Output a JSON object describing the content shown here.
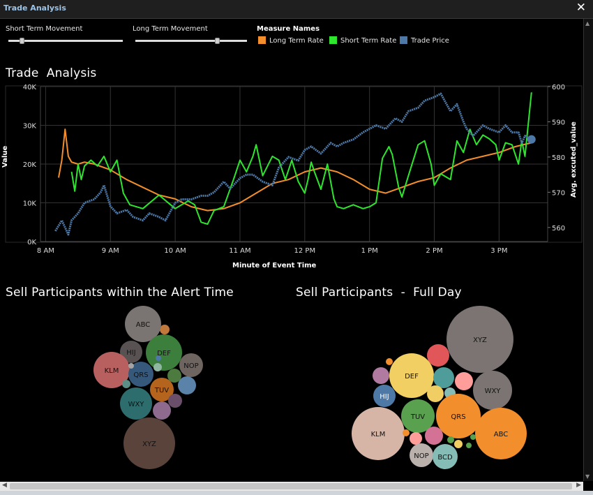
{
  "window": {
    "title": "Trade Analysis",
    "close_label": "✕"
  },
  "filters": {
    "short_term": {
      "label": "Short Term Movement"
    },
    "long_term": {
      "label": "Long Term Movement"
    }
  },
  "legend": {
    "title": "Measure Names",
    "items": [
      {
        "label": "Long Term Rate",
        "color": "#f28e2b"
      },
      {
        "label": "Short Term Rate",
        "color": "#2ee62e"
      },
      {
        "label": "Trade Price",
        "color": "#4e79a7"
      }
    ]
  },
  "main_chart_title": "Trade  Analysis",
  "bubble_titles": {
    "left": "Sell Participants within the Alert Time",
    "right": "Sell Participants  -  Full Day"
  },
  "chart_data": [
    {
      "type": "line",
      "title": "Trade  Analysis",
      "xlabel": "Minute of Event Time",
      "ylabel": "Value",
      "y2label": "Avg. excuted_value",
      "x_ticks": [
        "8 AM",
        "9 AM",
        "10 AM",
        "11 AM",
        "12 PM",
        "1 PM",
        "2 PM",
        "3 PM"
      ],
      "y_ticks": [
        "0K",
        "10K",
        "20K",
        "30K",
        "40K"
      ],
      "y2_ticks": [
        "560",
        "570",
        "580",
        "590",
        "600"
      ],
      "ylim": [
        0,
        40000
      ],
      "y2lim": [
        556,
        600
      ],
      "grid": true,
      "series": [
        {
          "name": "Long Term Rate",
          "axis": "left",
          "color": "#f28e2b",
          "x": [
            8.2,
            8.25,
            8.3,
            8.35,
            8.4,
            8.5,
            8.6,
            8.75,
            9.0,
            9.25,
            9.5,
            9.75,
            10.0,
            10.25,
            10.5,
            10.75,
            11.0,
            11.25,
            11.5,
            11.75,
            12.0,
            12.25,
            12.5,
            12.75,
            13.0,
            13.25,
            13.5,
            13.75,
            14.0,
            14.25,
            14.5,
            14.75,
            15.0,
            15.25,
            15.5
          ],
          "values": [
            16500,
            21000,
            29000,
            22000,
            20500,
            20000,
            20500,
            20000,
            18500,
            16000,
            14000,
            12000,
            11000,
            9000,
            8000,
            8500,
            10000,
            12500,
            15000,
            16000,
            18000,
            19000,
            18000,
            16000,
            13500,
            12500,
            14000,
            15500,
            16500,
            19000,
            21000,
            22000,
            23000,
            24500,
            25500
          ]
        },
        {
          "name": "Short Term Rate",
          "axis": "left",
          "color": "#2ee62e",
          "x": [
            8.4,
            8.45,
            8.5,
            8.55,
            8.6,
            8.7,
            8.8,
            8.9,
            9.0,
            9.1,
            9.2,
            9.3,
            9.5,
            9.75,
            10.0,
            10.1,
            10.2,
            10.3,
            10.4,
            10.5,
            10.6,
            10.75,
            10.9,
            11.0,
            11.1,
            11.2,
            11.25,
            11.35,
            11.5,
            11.6,
            11.7,
            11.8,
            11.9,
            12.0,
            12.05,
            12.1,
            12.15,
            12.25,
            12.35,
            12.45,
            12.5,
            12.6,
            12.75,
            12.9,
            13.0,
            13.1,
            13.2,
            13.3,
            13.35,
            13.45,
            13.5,
            13.6,
            13.75,
            13.85,
            13.95,
            14.0,
            14.1,
            14.25,
            14.35,
            14.45,
            14.55,
            14.65,
            14.75,
            14.85,
            14.95,
            15.0,
            15.1,
            15.2,
            15.3,
            15.35,
            15.4,
            15.5
          ],
          "values": [
            18000,
            13000,
            20000,
            16000,
            19500,
            21000,
            19500,
            22000,
            18000,
            21000,
            12500,
            9500,
            8500,
            12000,
            8500,
            9500,
            10500,
            9500,
            5000,
            4500,
            8000,
            9000,
            16000,
            21000,
            18000,
            22000,
            25000,
            17000,
            22000,
            21000,
            16000,
            21000,
            15500,
            12500,
            16000,
            20500,
            18000,
            13500,
            20000,
            11000,
            9000,
            8500,
            9500,
            8500,
            9000,
            10000,
            21500,
            24500,
            22500,
            14000,
            11500,
            17000,
            25000,
            26000,
            20000,
            14500,
            17500,
            16000,
            26000,
            23000,
            29000,
            25000,
            27500,
            26500,
            25000,
            21000,
            25500,
            25000,
            20000,
            26000,
            22000,
            38500
          ]
        },
        {
          "name": "Trade Price",
          "axis": "right",
          "color": "#4e79a7",
          "x": [
            8.15,
            8.25,
            8.35,
            8.4,
            8.5,
            8.6,
            8.75,
            8.85,
            8.9,
            9.0,
            9.1,
            9.25,
            9.35,
            9.5,
            9.6,
            9.75,
            9.85,
            10.0,
            10.1,
            10.25,
            10.4,
            10.5,
            10.6,
            10.75,
            10.85,
            11.0,
            11.1,
            11.2,
            11.35,
            11.5,
            11.6,
            11.75,
            11.9,
            12.0,
            12.1,
            12.25,
            12.4,
            12.5,
            12.6,
            12.75,
            12.9,
            13.0,
            13.1,
            13.25,
            13.4,
            13.5,
            13.6,
            13.75,
            13.85,
            14.0,
            14.1,
            14.25,
            14.35,
            14.45,
            14.5,
            14.6,
            14.75,
            14.85,
            15.0,
            15.1,
            15.2,
            15.3,
            15.35,
            15.4,
            15.5
          ],
          "values": [
            559,
            562,
            558,
            562,
            564,
            567,
            568,
            570,
            572,
            566,
            564,
            565,
            563,
            562,
            564,
            563,
            562,
            567,
            568,
            568,
            569,
            569,
            570,
            573,
            571,
            574,
            575,
            575,
            573,
            572,
            577,
            580,
            579,
            582,
            583,
            581,
            584,
            583,
            584,
            585,
            587,
            588,
            589,
            588,
            591,
            590,
            593,
            594,
            596,
            597,
            598,
            593,
            595,
            590,
            588,
            586,
            589,
            588,
            587,
            589,
            587,
            587,
            584,
            586,
            585
          ]
        }
      ]
    },
    {
      "type": "bubble",
      "title": "Sell Participants within the Alert Time",
      "labels": [
        "ABC",
        "HIJ",
        "DEF",
        "KLM",
        "QRS",
        "NOP",
        "TUV",
        "WXY",
        "XYZ"
      ],
      "bubbles": [
        {
          "label": "ABC",
          "color": "#7a7472"
        },
        {
          "label": "HIJ",
          "color": "#595252"
        },
        {
          "label": "DEF",
          "color": "#3c7e3c"
        },
        {
          "label": "KLM",
          "color": "#b86060"
        },
        {
          "label": "QRS",
          "color": "#36587a"
        },
        {
          "label": "NOP",
          "color": "#6e6460"
        },
        {
          "label": "TUV",
          "color": "#b5641e"
        },
        {
          "label": "WXY",
          "color": "#2d6d6e"
        },
        {
          "label": "XYZ",
          "color": "#5a433b"
        }
      ]
    },
    {
      "type": "bubble",
      "title": "Sell Participants  -  Full Day",
      "labels": [
        "XYZ",
        "DEF",
        "WXY",
        "HIJ",
        "QRS",
        "KLM",
        "TUV",
        "ABC",
        "NOP",
        "BCD"
      ],
      "bubbles": [
        {
          "label": "XYZ",
          "color": "#7b7472"
        },
        {
          "label": "DEF",
          "color": "#f1cf63"
        },
        {
          "label": "WXY",
          "color": "#7b7472"
        },
        {
          "label": "HIJ",
          "color": "#4e79a7"
        },
        {
          "label": "QRS",
          "color": "#f28e2b"
        },
        {
          "label": "KLM",
          "color": "#d7b5a6"
        },
        {
          "label": "TUV",
          "color": "#59a14f"
        },
        {
          "label": "ABC",
          "color": "#f28e2b"
        },
        {
          "label": "NOP",
          "color": "#bab0ac"
        },
        {
          "label": "BCD",
          "color": "#86bcb6"
        }
      ]
    }
  ]
}
